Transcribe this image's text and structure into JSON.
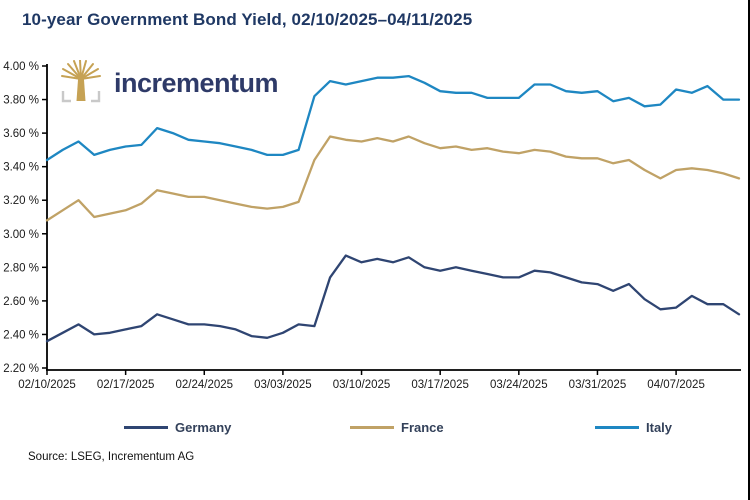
{
  "header": {
    "title": "10-year Government Bond Yield, 02/10/2025–04/11/2025"
  },
  "logo": {
    "brand": "incrementum",
    "tree_color": "#C6A254",
    "bracket_color": "#C9C9C9",
    "text_color": "#2E3A68"
  },
  "chart_data": {
    "type": "line",
    "title": "10-year Government Bond Yield, 02/10/2025–04/11/2025",
    "grid": false,
    "legend_position": "bottom",
    "x": [
      "02/10/2025",
      "02/11/2025",
      "02/12/2025",
      "02/13/2025",
      "02/14/2025",
      "02/17/2025",
      "02/18/2025",
      "02/19/2025",
      "02/20/2025",
      "02/21/2025",
      "02/24/2025",
      "02/25/2025",
      "02/26/2025",
      "02/27/2025",
      "02/28/2025",
      "03/03/2025",
      "03/04/2025",
      "03/05/2025",
      "03/06/2025",
      "03/07/2025",
      "03/10/2025",
      "03/11/2025",
      "03/12/2025",
      "03/13/2025",
      "03/14/2025",
      "03/17/2025",
      "03/18/2025",
      "03/19/2025",
      "03/20/2025",
      "03/21/2025",
      "03/24/2025",
      "03/25/2025",
      "03/26/2025",
      "03/27/2025",
      "03/28/2025",
      "03/31/2025",
      "04/01/2025",
      "04/02/2025",
      "04/03/2025",
      "04/04/2025",
      "04/07/2025",
      "04/08/2025",
      "04/09/2025",
      "04/10/2025",
      "04/11/2025"
    ],
    "x_ticks_every": 5,
    "y_axis": {
      "min": 2.2,
      "max": 4.0,
      "step": 0.2,
      "suffix": " %"
    },
    "series": [
      {
        "name": "Germany",
        "color": "#2F4572",
        "values": [
          2.36,
          2.41,
          2.46,
          2.4,
          2.41,
          2.43,
          2.45,
          2.52,
          2.49,
          2.46,
          2.46,
          2.45,
          2.43,
          2.39,
          2.38,
          2.41,
          2.46,
          2.45,
          2.74,
          2.87,
          2.83,
          2.85,
          2.83,
          2.86,
          2.8,
          2.78,
          2.8,
          2.78,
          2.76,
          2.74,
          2.74,
          2.78,
          2.77,
          2.74,
          2.71,
          2.7,
          2.66,
          2.7,
          2.61,
          2.55,
          2.56,
          2.63,
          2.58,
          2.58,
          2.52
        ]
      },
      {
        "name": "France",
        "color": "#C0A266",
        "values": [
          3.08,
          3.14,
          3.2,
          3.1,
          3.12,
          3.14,
          3.18,
          3.26,
          3.24,
          3.22,
          3.22,
          3.2,
          3.18,
          3.16,
          3.15,
          3.16,
          3.19,
          3.44,
          3.58,
          3.56,
          3.55,
          3.57,
          3.55,
          3.58,
          3.54,
          3.51,
          3.52,
          3.5,
          3.51,
          3.49,
          3.48,
          3.5,
          3.49,
          3.46,
          3.45,
          3.45,
          3.42,
          3.44,
          3.38,
          3.33,
          3.38,
          3.39,
          3.38,
          3.36,
          3.33
        ]
      },
      {
        "name": "Italy",
        "color": "#1E87C2",
        "values": [
          3.44,
          3.5,
          3.55,
          3.47,
          3.5,
          3.52,
          3.53,
          3.63,
          3.6,
          3.56,
          3.55,
          3.54,
          3.52,
          3.5,
          3.47,
          3.47,
          3.5,
          3.82,
          3.91,
          3.89,
          3.91,
          3.93,
          3.93,
          3.94,
          3.9,
          3.85,
          3.84,
          3.84,
          3.81,
          3.81,
          3.81,
          3.89,
          3.89,
          3.85,
          3.84,
          3.85,
          3.79,
          3.81,
          3.76,
          3.77,
          3.86,
          3.84,
          3.88,
          3.8,
          3.8
        ]
      }
    ]
  },
  "source": {
    "label": "Source: LSEG, Incrementum AG"
  }
}
